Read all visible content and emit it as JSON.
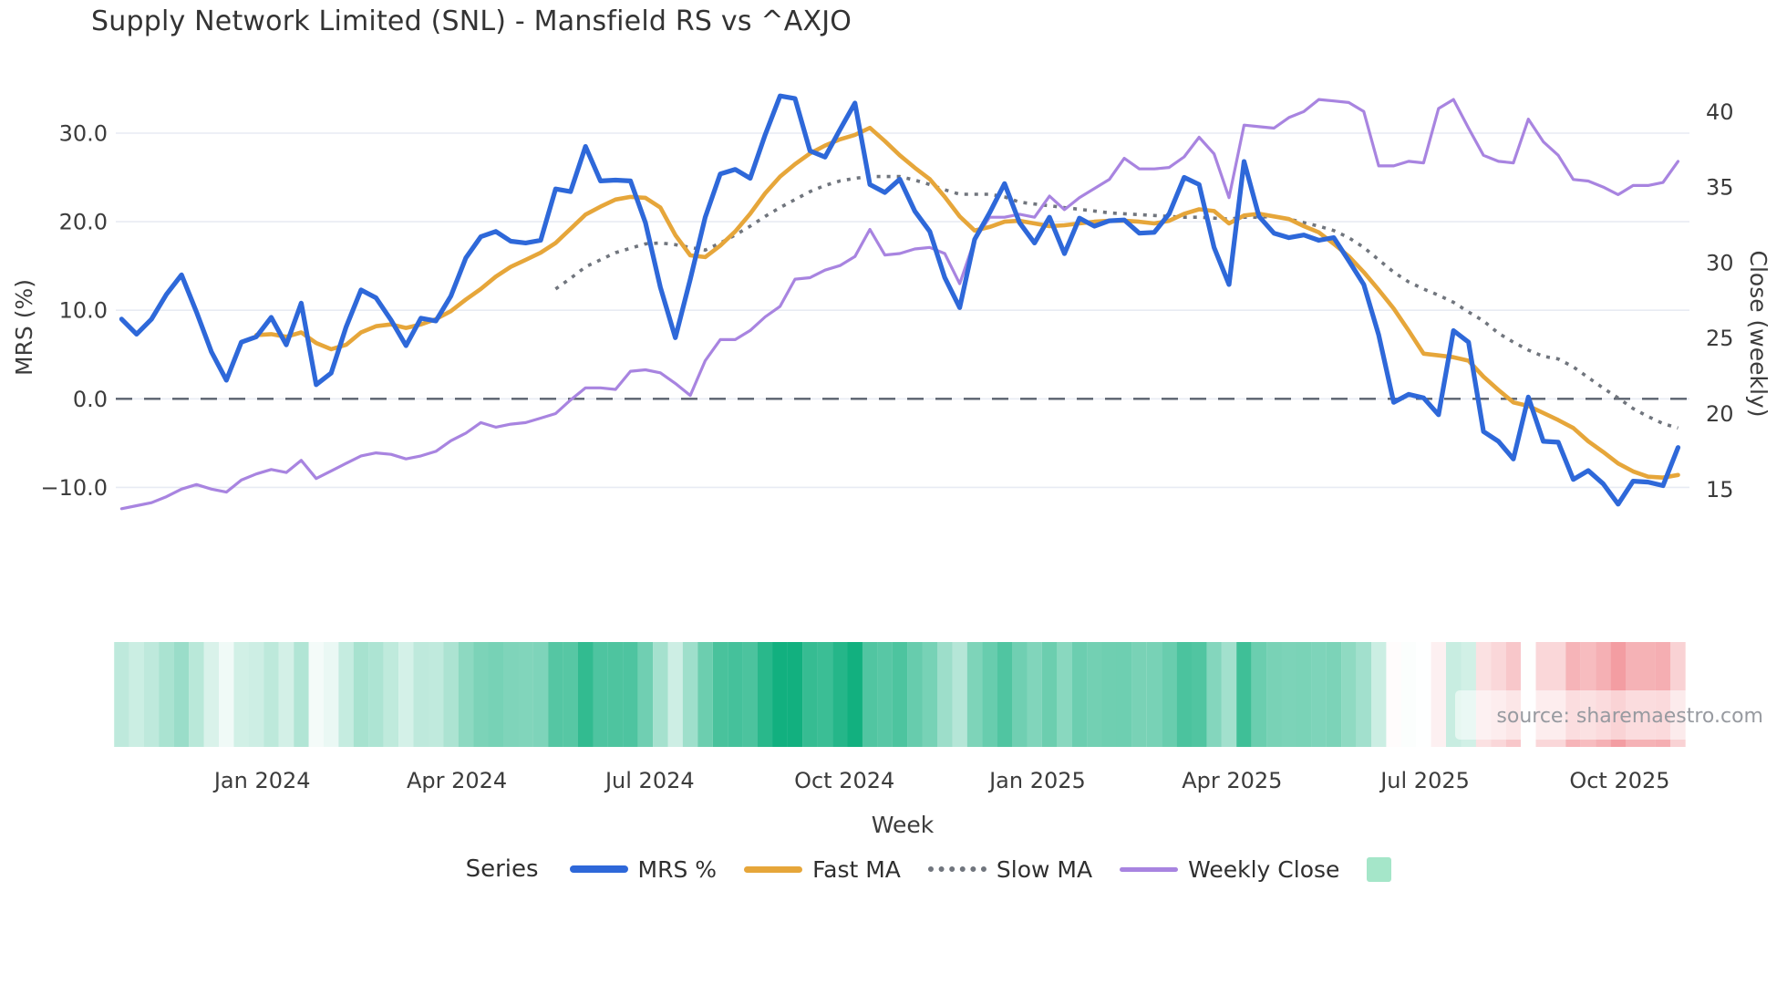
{
  "title": "Supply Network Limited (SNL) - Mansfield RS vs ^AXJO",
  "watermark": "source: sharemaestro.com",
  "axes": {
    "left_label": "MRS (%)",
    "right_label": "Close (weekly)",
    "x_label": "Week",
    "left_ticks": [
      {
        "label": "30.0",
        "value": 30
      },
      {
        "label": "20.0",
        "value": 20
      },
      {
        "label": "10.0",
        "value": 10
      },
      {
        "label": "0.0",
        "value": 0
      },
      {
        "label": "−10.0",
        "value": -10
      }
    ],
    "right_ticks": [
      {
        "label": "40",
        "value": 40
      },
      {
        "label": "35",
        "value": 35
      },
      {
        "label": "30",
        "value": 30
      },
      {
        "label": "25",
        "value": 25
      },
      {
        "label": "20",
        "value": 20
      },
      {
        "label": "15",
        "value": 15
      }
    ],
    "x_ticks": [
      {
        "label": "Jan 2024",
        "week": 9.4
      },
      {
        "label": "Apr 2024",
        "week": 22.4
      },
      {
        "label": "Jul 2024",
        "week": 35.3
      },
      {
        "label": "Oct 2024",
        "week": 48.3
      },
      {
        "label": "Jan 2025",
        "week": 61.2
      },
      {
        "label": "Apr 2025",
        "week": 74.2
      },
      {
        "label": "Jul 2025",
        "week": 87.1
      },
      {
        "label": "Oct 2025",
        "week": 100.1
      }
    ]
  },
  "legend": {
    "title": "Series",
    "items": [
      {
        "label": "MRS %",
        "color": "#2e68d9",
        "style": "solid"
      },
      {
        "label": "Fast MA",
        "color": "#e6a63a",
        "style": "solid"
      },
      {
        "label": "Slow MA",
        "color": "#70757d",
        "style": "dotted"
      },
      {
        "label": "Weekly Close",
        "color": "#a884e0",
        "style": "solid"
      },
      {
        "label": "",
        "color": "#a5e6c9",
        "style": "swatch"
      }
    ]
  },
  "chart_data": {
    "type": "line",
    "title": "Supply Network Limited (SNL) - Mansfield RS vs ^AXJO",
    "x_unit": "week_index_from_2023-10-30",
    "x_range": [
      0,
      104
    ],
    "xlabel": "Week",
    "left_axis": {
      "label": "MRS (%)",
      "ticks": [
        30,
        20,
        10,
        0,
        -10
      ],
      "zero_dashed_line": 0,
      "ylim": [
        -21,
        35.4
      ]
    },
    "right_axis": {
      "label": "Close (weekly)",
      "ticks": [
        40,
        35,
        30,
        25,
        20,
        15
      ],
      "ylim": [
        13.2,
        41.7
      ]
    },
    "grid": true,
    "legend_position": "bottom",
    "series": [
      {
        "name": "MRS %",
        "axis": "left",
        "color": "#2e68d9",
        "dash": "solid",
        "values": [
          9.0,
          7.3,
          9.0,
          11.8,
          14.0,
          9.8,
          5.3,
          2.1,
          6.4,
          7.0,
          9.2,
          6.1,
          10.8,
          1.6,
          2.9,
          8.1,
          12.3,
          11.4,
          8.9,
          6.0,
          9.1,
          8.8,
          11.6,
          15.9,
          18.3,
          18.9,
          17.8,
          17.6,
          17.9,
          23.7,
          23.4,
          28.5,
          24.6,
          24.7,
          24.6,
          19.9,
          12.6,
          6.9,
          13.5,
          20.5,
          25.4,
          25.9,
          24.9,
          29.8,
          34.2,
          33.9,
          28.0,
          27.3,
          30.4,
          33.4,
          24.2,
          23.3,
          24.8,
          21.2,
          18.9,
          13.7,
          10.3,
          18.0,
          21.0,
          24.3,
          19.9,
          17.6,
          20.5,
          16.4,
          20.4,
          19.5,
          20.1,
          20.2,
          18.7,
          18.8,
          20.9,
          25.0,
          24.2,
          17.1,
          12.9,
          26.8,
          20.6,
          18.7,
          18.2,
          18.5,
          17.9,
          18.2,
          15.6,
          12.9,
          7.2,
          -0.4,
          0.5,
          0.1,
          -1.8,
          7.7,
          6.4,
          -3.7,
          -4.8,
          -6.8,
          0.2,
          -4.8,
          -4.9,
          -9.1,
          -8.1,
          -9.6,
          -11.9,
          -9.3,
          -9.4,
          -9.8,
          -5.5
        ]
      },
      {
        "name": "Fast MA",
        "axis": "left",
        "color": "#e6a63a",
        "dash": "solid",
        "values": [
          null,
          null,
          null,
          null,
          null,
          null,
          null,
          null,
          null,
          7.2,
          7.3,
          7.0,
          7.5,
          6.3,
          5.6,
          6.1,
          7.5,
          8.2,
          8.4,
          8.0,
          8.4,
          9.0,
          9.9,
          11.2,
          12.4,
          13.8,
          14.9,
          15.7,
          16.5,
          17.6,
          19.2,
          20.8,
          21.7,
          22.5,
          22.8,
          22.7,
          21.6,
          18.5,
          16.2,
          16.0,
          17.3,
          18.9,
          20.9,
          23.2,
          25.1,
          26.5,
          27.7,
          28.6,
          29.3,
          29.8,
          30.6,
          29.1,
          27.5,
          26.1,
          24.8,
          22.8,
          20.6,
          19.0,
          19.4,
          20.0,
          20.1,
          19.8,
          19.5,
          19.6,
          19.8,
          20.0,
          20.1,
          20.1,
          20.0,
          19.8,
          20.1,
          20.9,
          21.4,
          21.2,
          19.8,
          20.7,
          20.9,
          20.6,
          20.3,
          19.5,
          18.8,
          17.5,
          16.1,
          14.3,
          12.3,
          10.2,
          7.7,
          5.1,
          4.9,
          4.7,
          4.3,
          2.5,
          1.0,
          -0.4,
          -0.8,
          -1.6,
          -2.4,
          -3.3,
          -4.8,
          -6.0,
          -7.3,
          -8.2,
          -8.8,
          -8.9,
          -8.6
        ]
      },
      {
        "name": "Slow MA",
        "axis": "left",
        "color": "#70757d",
        "dash": "dotted",
        "values": [
          null,
          null,
          null,
          null,
          null,
          null,
          null,
          null,
          null,
          null,
          null,
          null,
          null,
          null,
          null,
          null,
          null,
          null,
          null,
          null,
          null,
          null,
          null,
          null,
          null,
          null,
          null,
          null,
          null,
          12.4,
          13.6,
          14.9,
          15.7,
          16.5,
          17.0,
          17.5,
          17.6,
          17.4,
          17.1,
          16.8,
          17.6,
          18.5,
          19.5,
          20.6,
          21.6,
          22.5,
          23.4,
          24.1,
          24.6,
          24.9,
          25.1,
          25.1,
          25.1,
          24.7,
          24.2,
          23.6,
          23.1,
          23.1,
          23.1,
          22.8,
          22.2,
          22.0,
          21.8,
          21.6,
          21.4,
          21.2,
          21.0,
          20.9,
          20.8,
          20.7,
          20.6,
          20.5,
          20.5,
          20.4,
          20.3,
          20.5,
          20.5,
          20.6,
          20.3,
          19.9,
          19.5,
          19.0,
          18.2,
          17.1,
          15.7,
          14.3,
          13.2,
          12.4,
          11.7,
          10.9,
          9.8,
          8.8,
          7.4,
          6.4,
          5.5,
          4.8,
          4.5,
          3.6,
          2.4,
          1.2,
          0.1,
          -1.1,
          -2.0,
          -2.8,
          -3.3
        ]
      },
      {
        "name": "Weekly Close",
        "axis": "right",
        "color": "#a884e0",
        "dash": "solid",
        "values": [
          13.7,
          13.9,
          14.1,
          14.5,
          15.0,
          15.3,
          15.0,
          14.8,
          15.6,
          16.0,
          16.3,
          16.1,
          16.9,
          15.7,
          16.2,
          16.7,
          17.2,
          17.4,
          17.3,
          17.0,
          17.2,
          17.5,
          18.2,
          18.7,
          19.4,
          19.1,
          19.3,
          19.4,
          19.7,
          20.0,
          20.9,
          21.7,
          21.7,
          21.6,
          22.8,
          22.9,
          22.7,
          22.0,
          21.2,
          23.5,
          24.9,
          24.9,
          25.5,
          26.4,
          27.1,
          28.9,
          29.0,
          29.5,
          29.8,
          30.4,
          32.2,
          30.5,
          30.6,
          30.9,
          31.0,
          30.6,
          28.6,
          31.5,
          33.0,
          33.0,
          33.2,
          33.0,
          34.4,
          33.5,
          34.3,
          34.9,
          35.5,
          36.9,
          36.2,
          36.2,
          36.3,
          37.0,
          38.3,
          37.2,
          34.3,
          39.1,
          39.0,
          38.9,
          39.6,
          40.0,
          40.8,
          40.7,
          40.6,
          40.0,
          36.4,
          36.4,
          36.7,
          36.6,
          40.2,
          40.8,
          38.9,
          37.1,
          36.7,
          36.6,
          39.5,
          38.0,
          37.1,
          35.5,
          35.4,
          35.0,
          34.5,
          35.1,
          35.1,
          35.3,
          36.7
        ]
      }
    ],
    "heatmap_strip": {
      "source_series": "MRS %",
      "positive_color": "#12b07f",
      "negative_color": "#f2989d",
      "neutral_color": "#ffffff",
      "position": "below_plot"
    }
  }
}
